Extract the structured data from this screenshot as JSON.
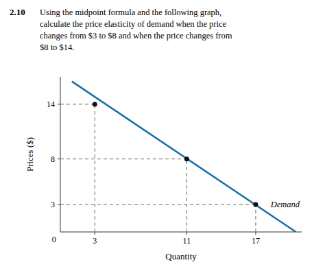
{
  "chart_data": {
    "type": "line",
    "title": "2.10",
    "subtitle": [
      "Using the midpoint formula and the following graph,",
      "calculate the price elasticity of demand when the price",
      "changes from $3 to $8 and when the price changes from",
      "$8 to $14."
    ],
    "x_label": "Quantity",
    "y_label": "Prices ($)",
    "xlim": [
      0,
      21
    ],
    "ylim": [
      0,
      17
    ],
    "xticks": [
      3,
      11,
      17
    ],
    "yticks": [
      3,
      8,
      14
    ],
    "grid": false,
    "series": [
      {
        "type": "line",
        "color": "#1a6fa8",
        "line_style": "solid",
        "x": [
          1.0,
          20.5
        ],
        "values": [
          16.5,
          0.0
        ]
      },
      {
        "type": "scatter",
        "color": "#111111",
        "x": [
          3,
          11,
          17
        ],
        "values": [
          14,
          8,
          3
        ]
      },
      {
        "type": "line",
        "color": "#666666",
        "line_style": "dashed",
        "x": [
          3,
          3
        ],
        "values": [
          0,
          14
        ]
      },
      {
        "type": "line",
        "color": "#666666",
        "line_style": "dashed",
        "x": [
          0,
          3
        ],
        "values": [
          14,
          14
        ]
      },
      {
        "type": "line",
        "color": "#666666",
        "line_style": "dashed",
        "x": [
          11,
          11
        ],
        "values": [
          0,
          8
        ]
      },
      {
        "type": "line",
        "color": "#666666",
        "line_style": "dashed",
        "x": [
          0,
          11
        ],
        "values": [
          8,
          8
        ]
      },
      {
        "type": "line",
        "color": "#666666",
        "line_style": "dashed",
        "x": [
          17,
          17
        ],
        "values": [
          0,
          3
        ]
      },
      {
        "type": "line",
        "color": "#666666",
        "line_style": "dashed",
        "x": [
          0,
          17
        ],
        "values": [
          3,
          3
        ]
      }
    ],
    "annotations": [
      {
        "text": "Demand",
        "x": 18.3,
        "y": 3.0
      },
      {
        "text": "0",
        "x": 0,
        "y": 0
      }
    ]
  }
}
